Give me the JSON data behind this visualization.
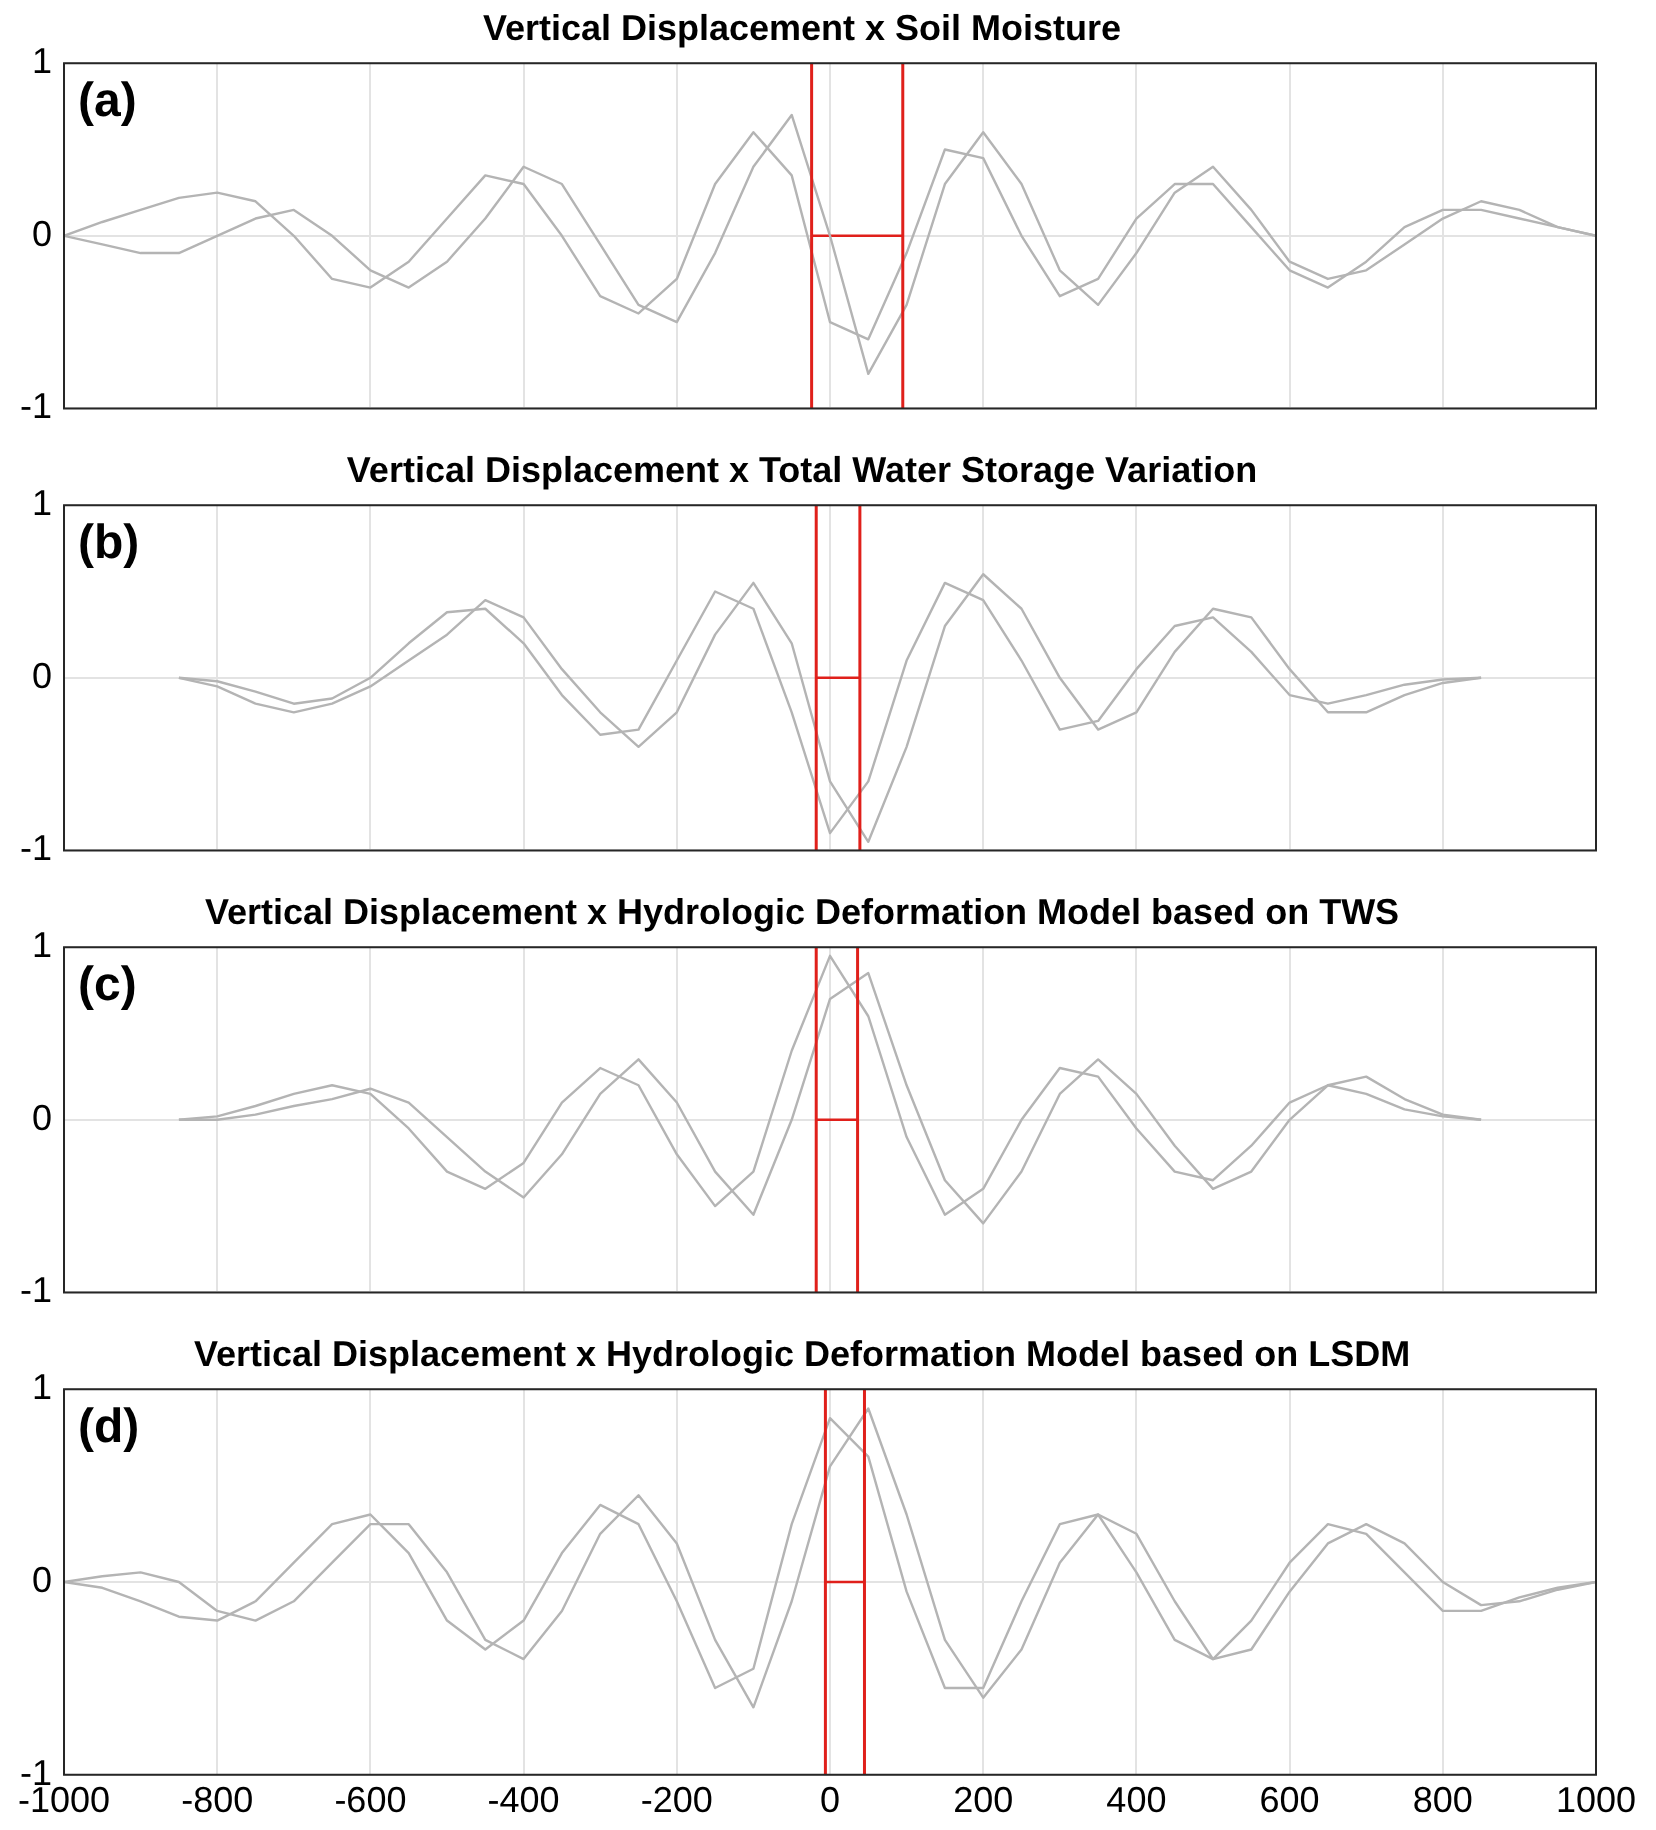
{
  "chart_data": [
    {
      "type": "line",
      "title": "Vertical Displacement x Soil Moisture",
      "annotations": [
        "(a)"
      ],
      "x": [
        -1000,
        -950,
        -900,
        -850,
        -800,
        -750,
        -700,
        -650,
        -600,
        -550,
        -500,
        -450,
        -400,
        -350,
        -300,
        -250,
        -200,
        -150,
        -100,
        -50,
        0,
        50,
        100,
        150,
        200,
        250,
        300,
        350,
        400,
        450,
        500,
        550,
        600,
        650,
        700,
        750,
        800,
        850,
        900,
        950,
        1000
      ],
      "series": [
        {
          "color": "#b4b4b4",
          "values": [
            0,
            0.08,
            0.15,
            0.22,
            0.25,
            0.2,
            0.0,
            -0.25,
            -0.3,
            -0.15,
            0.1,
            0.35,
            0.3,
            0.0,
            -0.35,
            -0.45,
            -0.25,
            0.3,
            0.6,
            0.35,
            -0.5,
            -0.6,
            -0.1,
            0.5,
            0.45,
            0.0,
            -0.35,
            -0.25,
            0.1,
            0.3,
            0.3,
            0.05,
            -0.2,
            -0.3,
            -0.15,
            0.05,
            0.15,
            0.15,
            0.1,
            0.05,
            0
          ]
        },
        {
          "color": "#b4b4b4",
          "values": [
            0,
            -0.05,
            -0.1,
            -0.1,
            0.0,
            0.1,
            0.15,
            0.0,
            -0.2,
            -0.3,
            -0.15,
            0.1,
            0.4,
            0.3,
            -0.05,
            -0.4,
            -0.5,
            -0.1,
            0.4,
            0.7,
            0.0,
            -0.8,
            -0.4,
            0.3,
            0.6,
            0.3,
            -0.2,
            -0.4,
            -0.1,
            0.25,
            0.4,
            0.15,
            -0.15,
            -0.25,
            -0.2,
            -0.05,
            0.1,
            0.2,
            0.15,
            0.05,
            0
          ]
        },
        {
          "type": "line",
          "color": "#e0201b",
          "x": [
            -24,
            95
          ],
          "values": [
            0,
            0
          ]
        }
      ],
      "ref_lines": [
        {
          "axis": "x",
          "value": -24,
          "color": "#e0201b"
        },
        {
          "axis": "x",
          "value": 95,
          "color": "#e0201b"
        }
      ],
      "xlim": [
        -1000,
        1000
      ],
      "xticks": [
        -1000,
        -800,
        -600,
        -400,
        -200,
        0,
        200,
        400,
        600,
        800,
        1000
      ],
      "ylim": [
        -1,
        1
      ],
      "yticks": [
        -1,
        0,
        1
      ],
      "grid": true,
      "tick_labels": "y"
    },
    {
      "type": "line",
      "title": "Vertical Displacement x Total Water Storage Variation",
      "annotations": [
        "(b)"
      ],
      "x": [
        -850,
        -800,
        -750,
        -700,
        -650,
        -600,
        -550,
        -500,
        -450,
        -400,
        -350,
        -300,
        -250,
        -200,
        -150,
        -100,
        -50,
        0,
        50,
        100,
        150,
        200,
        250,
        300,
        350,
        400,
        450,
        500,
        550,
        600,
        650,
        700,
        750,
        800,
        850
      ],
      "series": [
        {
          "color": "#b4b4b4",
          "values": [
            0,
            -0.02,
            -0.08,
            -0.15,
            -0.12,
            0.0,
            0.2,
            0.38,
            0.4,
            0.2,
            -0.1,
            -0.33,
            -0.3,
            0.1,
            0.5,
            0.4,
            -0.2,
            -0.9,
            -0.6,
            0.1,
            0.55,
            0.45,
            0.1,
            -0.3,
            -0.25,
            0.05,
            0.3,
            0.35,
            0.15,
            -0.1,
            -0.15,
            -0.1,
            -0.04,
            -0.01,
            0
          ]
        },
        {
          "color": "#b4b4b4",
          "values": [
            0,
            -0.05,
            -0.15,
            -0.2,
            -0.15,
            -0.05,
            0.1,
            0.25,
            0.45,
            0.35,
            0.05,
            -0.2,
            -0.4,
            -0.2,
            0.25,
            0.55,
            0.2,
            -0.6,
            -0.95,
            -0.4,
            0.3,
            0.6,
            0.4,
            0.0,
            -0.3,
            -0.2,
            0.15,
            0.4,
            0.35,
            0.05,
            -0.2,
            -0.2,
            -0.1,
            -0.03,
            0
          ]
        },
        {
          "type": "line",
          "color": "#e0201b",
          "x": [
            -18,
            39
          ],
          "values": [
            0,
            0
          ]
        }
      ],
      "ref_lines": [
        {
          "axis": "x",
          "value": -18,
          "color": "#e0201b"
        },
        {
          "axis": "x",
          "value": 39,
          "color": "#e0201b"
        }
      ],
      "xlim": [
        -1000,
        1000
      ],
      "xticks": [
        -1000,
        -800,
        -600,
        -400,
        -200,
        0,
        200,
        400,
        600,
        800,
        1000
      ],
      "ylim": [
        -1,
        1
      ],
      "yticks": [
        -1,
        0,
        1
      ],
      "grid": true,
      "tick_labels": "y"
    },
    {
      "type": "line",
      "title": "Vertical Displacement x Hydrologic Deformation Model based on TWS",
      "annotations": [
        "(c)"
      ],
      "x": [
        -850,
        -800,
        -750,
        -700,
        -650,
        -600,
        -550,
        -500,
        -450,
        -400,
        -350,
        -300,
        -250,
        -200,
        -150,
        -100,
        -50,
        0,
        50,
        100,
        150,
        200,
        250,
        300,
        350,
        400,
        450,
        500,
        550,
        600,
        650,
        700,
        750,
        800,
        850
      ],
      "series": [
        {
          "color": "#b4b4b4",
          "values": [
            0,
            0.02,
            0.08,
            0.15,
            0.2,
            0.15,
            -0.05,
            -0.3,
            -0.4,
            -0.25,
            0.1,
            0.3,
            0.2,
            -0.2,
            -0.5,
            -0.3,
            0.4,
            0.95,
            0.6,
            -0.1,
            -0.55,
            -0.4,
            0.0,
            0.3,
            0.25,
            -0.05,
            -0.3,
            -0.35,
            -0.15,
            0.1,
            0.2,
            0.15,
            0.06,
            0.02,
            0
          ]
        },
        {
          "color": "#b4b4b4",
          "values": [
            0,
            0.0,
            0.03,
            0.08,
            0.12,
            0.18,
            0.1,
            -0.1,
            -0.3,
            -0.45,
            -0.2,
            0.15,
            0.35,
            0.1,
            -0.3,
            -0.55,
            0.0,
            0.7,
            0.85,
            0.2,
            -0.35,
            -0.6,
            -0.3,
            0.15,
            0.35,
            0.15,
            -0.15,
            -0.4,
            -0.3,
            0.0,
            0.2,
            0.25,
            0.12,
            0.03,
            0
          ]
        },
        {
          "type": "line",
          "color": "#e0201b",
          "x": [
            -18,
            36
          ],
          "values": [
            0,
            0
          ]
        }
      ],
      "ref_lines": [
        {
          "axis": "x",
          "value": -18,
          "color": "#e0201b"
        },
        {
          "axis": "x",
          "value": 36,
          "color": "#e0201b"
        }
      ],
      "xlim": [
        -1000,
        1000
      ],
      "xticks": [
        -1000,
        -800,
        -600,
        -400,
        -200,
        0,
        200,
        400,
        600,
        800,
        1000
      ],
      "ylim": [
        -1,
        1
      ],
      "yticks": [
        -1,
        0,
        1
      ],
      "grid": true,
      "tick_labels": "y"
    },
    {
      "type": "line",
      "title": "Vertical Displacement x Hydrologic Deformation Model based on LSDM",
      "annotations": [
        "(d)"
      ],
      "x": [
        -1000,
        -950,
        -900,
        -850,
        -800,
        -750,
        -700,
        -650,
        -600,
        -550,
        -500,
        -450,
        -400,
        -350,
        -300,
        -250,
        -200,
        -150,
        -100,
        -50,
        0,
        50,
        100,
        150,
        200,
        250,
        300,
        350,
        400,
        450,
        500,
        550,
        600,
        650,
        700,
        750,
        800,
        850,
        900,
        950,
        1000
      ],
      "series": [
        {
          "color": "#b4b4b4",
          "values": [
            0,
            -0.03,
            -0.1,
            -0.18,
            -0.2,
            -0.1,
            0.1,
            0.3,
            0.35,
            0.15,
            -0.2,
            -0.35,
            -0.2,
            0.15,
            0.4,
            0.3,
            -0.1,
            -0.55,
            -0.45,
            0.3,
            0.85,
            0.65,
            -0.05,
            -0.55,
            -0.55,
            -0.1,
            0.3,
            0.35,
            0.05,
            -0.3,
            -0.4,
            -0.2,
            0.1,
            0.3,
            0.25,
            0.05,
            -0.15,
            -0.15,
            -0.08,
            -0.03,
            0
          ]
        },
        {
          "color": "#b4b4b4",
          "values": [
            0,
            0.03,
            0.05,
            0.0,
            -0.15,
            -0.2,
            -0.1,
            0.1,
            0.3,
            0.3,
            0.05,
            -0.3,
            -0.4,
            -0.15,
            0.25,
            0.45,
            0.2,
            -0.3,
            -0.65,
            -0.1,
            0.6,
            0.9,
            0.35,
            -0.3,
            -0.6,
            -0.35,
            0.1,
            0.35,
            0.25,
            -0.1,
            -0.4,
            -0.35,
            -0.05,
            0.2,
            0.3,
            0.2,
            0.0,
            -0.12,
            -0.1,
            -0.04,
            0
          ]
        },
        {
          "type": "line",
          "color": "#e0201b",
          "x": [
            -6,
            45
          ],
          "values": [
            0,
            0
          ]
        }
      ],
      "ref_lines": [
        {
          "axis": "x",
          "value": -6,
          "color": "#e0201b"
        },
        {
          "axis": "x",
          "value": 45,
          "color": "#e0201b"
        }
      ],
      "xlim": [
        -1000,
        1000
      ],
      "xticks": [
        -1000,
        -800,
        -600,
        -400,
        -200,
        0,
        200,
        400,
        600,
        800,
        1000
      ],
      "ylim": [
        -1,
        1
      ],
      "yticks": [
        -1,
        0,
        1
      ],
      "grid": true
    }
  ]
}
